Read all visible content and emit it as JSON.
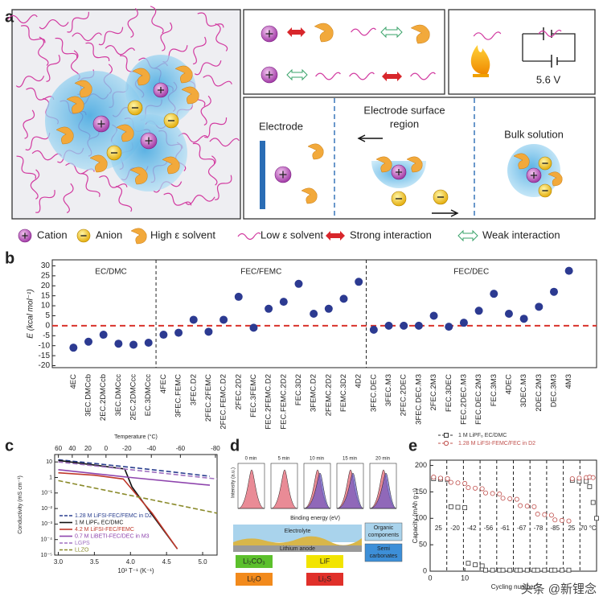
{
  "panel_labels": [
    "a",
    "b",
    "c",
    "d",
    "e"
  ],
  "panel_a": {
    "voltage": "5.6 V",
    "electrode": "Electrode",
    "surface_region": [
      "Electrode surface",
      "region"
    ],
    "bulk": "Bulk solution",
    "legend": [
      "Cation",
      "Anion",
      "High ε solvent",
      "Low ε solvent",
      "Strong interaction",
      "Weak interaction"
    ]
  },
  "panel_d": {
    "times": [
      "0 min",
      "5 min",
      "10 min",
      "15 min",
      "20 min"
    ],
    "x_label": "Binding energy (eV)",
    "y_label": "Intensity (a.u.)",
    "electrolyte": "Electrolyte",
    "organic": [
      "Organic",
      "components"
    ],
    "anode": "Lithium anode",
    "semi": [
      "Semi",
      "carbonates"
    ],
    "species": [
      "Li₂CO₃",
      "LiF",
      "Li₂O",
      "Li₂S"
    ]
  },
  "watermark": "头条 @新锂念",
  "chart_data": [
    {
      "type": "scatter",
      "y_label": "E (kcal mol⁻¹)",
      "color": "#2c3a91",
      "zero_line_color": "#d9322b",
      "ylim": [
        -21,
        33
      ],
      "yticks": [
        -20,
        -15,
        -10,
        -5,
        0,
        5,
        10,
        15,
        20,
        25,
        30
      ],
      "groups": [
        {
          "name": "EC/DMC",
          "categories": [
            "4EC",
            "3EC.DMCcb",
            "2EC.2DMCcb",
            "3EC.DMCcc",
            "2EC.2DMCcc",
            "EC.3DMCcc"
          ],
          "values": [
            -11,
            -8,
            -4.5,
            -9,
            -9.5,
            -8.5
          ]
        },
        {
          "name": "FEC/FEMC",
          "categories": [
            "4FEC",
            "3FEC.FEMC",
            "3FEC.D2",
            "2FEC.2FEMC",
            "2FEC.FEMC.D2",
            "2FEC.2D2",
            "FEC.3FEMC",
            "FEC.2FEMC.D2",
            "FEC.FEMC.2D2",
            "FEC.3D2",
            "3FEMC.D2",
            "2FEMC.2D2",
            "FEMC.3D2",
            "4D2"
          ],
          "values": [
            -4.5,
            -3.5,
            3,
            -3,
            3,
            14.5,
            -1,
            8.5,
            12,
            21,
            6,
            8.5,
            13.5,
            22
          ]
        },
        {
          "name": "FEC/DEC",
          "categories": [
            "3FEC.DEC",
            "3FEC.M3",
            "2FEC.2DEC",
            "3FEC.DEC.M3",
            "2FEC.2M3",
            "FEC.3DEC",
            "FEC.2DEC.M3",
            "FEC.DEC.2M3",
            "FEC.3M3",
            "4DEC",
            "3DEC.M3",
            "2DEC.2M3",
            "DEC.3M3",
            "4M3"
          ],
          "values": [
            -2,
            0,
            0,
            0,
            5,
            -0.5,
            1.5,
            7.5,
            16,
            6,
            3.5,
            9.5,
            17,
            27.5
          ]
        }
      ]
    },
    {
      "type": "line",
      "log_y": true,
      "top_label": "Temperature (°C)",
      "x_label": "10³ T⁻¹ (K⁻¹)",
      "y_label": "Conductivity (mS cm⁻¹)",
      "xlim": [
        2.95,
        5.2
      ],
      "xticks": [
        {
          "value": 3,
          "label": "3.0"
        },
        3.5,
        {
          "value": 4,
          "label": "4.0"
        },
        4.5,
        {
          "value": 5,
          "label": "5.0"
        }
      ],
      "x2ticks": [
        60,
        40,
        20,
        0,
        -20,
        -40,
        -60,
        -80
      ],
      "ylim": [
        1e-05,
        30
      ],
      "yticks": [
        {
          "value": 10,
          "label": "10"
        },
        1,
        {
          "value": 0.1,
          "label": "10⁻¹"
        },
        {
          "value": 0.01,
          "label": "10⁻²"
        },
        {
          "value": 0.001,
          "label": "10⁻³"
        },
        {
          "value": 0.0001,
          "label": "10⁻⁴"
        },
        {
          "value": 1e-05,
          "label": "10⁻⁵"
        }
      ],
      "series": [
        {
          "name": "1.28 M LiFSI-FEC/FEMC in D2",
          "color": "#2a3f8f",
          "dash": "dashed",
          "x": [
            3.0,
            3.5,
            4.0,
            4.5,
            5.1
          ],
          "values": [
            14,
            8,
            4.5,
            2.5,
            1.2
          ]
        },
        {
          "name": "1 M LiPF₆ EC/DMC",
          "color": "#111111",
          "dash": "solid",
          "x": [
            3.0,
            3.5,
            3.92,
            4.02,
            4.3,
            4.65
          ],
          "values": [
            12.6,
            6.3,
            3.5,
            0.25,
            0.004,
            2.5e-05
          ]
        },
        {
          "name": "4.2 M LiFSI-FEC/FEMC",
          "color": "#c0392b",
          "dash": "solid",
          "x": [
            3.0,
            3.5,
            3.9,
            4.3,
            4.65
          ],
          "values": [
            2,
            1.4,
            0.8,
            0.005,
            2.5e-05
          ]
        },
        {
          "name": "0.7 M LiBETI-FEC/DEC in M3",
          "color": "#8e44ad",
          "dash": "solid",
          "x": [
            3.0,
            4.0,
            5.1
          ],
          "values": [
            3.2,
            1,
            0.32
          ]
        },
        {
          "name": "LGPS",
          "color": "#a070c0",
          "dash": "dashed",
          "x": [
            3.0,
            5.2
          ],
          "values": [
            10,
            0.8
          ]
        },
        {
          "name": "LLZO",
          "color": "#8a8a2a",
          "dash": "dashed",
          "x": [
            3.0,
            5.2
          ],
          "values": [
            0.63,
            0.005
          ]
        }
      ]
    },
    {
      "type": "scatter",
      "x_label": "Cycling number",
      "y_label": "Capacity (mAh g⁻¹)",
      "xlim": [
        0,
        48
      ],
      "xticks": [
        0,
        10
      ],
      "ylim": [
        0,
        210
      ],
      "yticks": [
        0,
        50,
        100,
        150,
        200
      ],
      "temperature_labels": [
        "25",
        "-20",
        "-42",
        "-56",
        "-61",
        "-67",
        "-78",
        "-85",
        "25",
        "70 °C"
      ],
      "series": [
        {
          "name": "1 M LiPF₆ EC/DMC",
          "color": "#333333",
          "marker": "square",
          "x": [
            1,
            3,
            5,
            6,
            8,
            10,
            11,
            13,
            15,
            16,
            18,
            20,
            21,
            23,
            25,
            26,
            28,
            30,
            31,
            33,
            35,
            36,
            38,
            40,
            41,
            43,
            45,
            46,
            47,
            48
          ],
          "values": [
            175,
            174,
            173,
            122,
            121,
            120,
            15,
            12,
            10,
            2,
            2,
            2,
            2,
            2,
            2,
            2,
            2,
            2,
            2,
            2,
            2,
            2,
            2,
            2,
            172,
            170,
            170,
            160,
            130,
            100
          ]
        },
        {
          "name": "1.28 M LiFSI-FEMC/FEC in D2",
          "color": "#c0504d",
          "marker": "circle",
          "x": [
            1,
            3,
            5,
            6,
            8,
            10,
            11,
            13,
            15,
            16,
            18,
            20,
            21,
            23,
            25,
            26,
            28,
            30,
            31,
            33,
            35,
            36,
            38,
            40,
            41,
            43,
            45,
            46,
            47
          ],
          "values": [
            178,
            176,
            175,
            168,
            167,
            166,
            158,
            157,
            156,
            148,
            147,
            146,
            138,
            137,
            136,
            124,
            123,
            122,
            108,
            107,
            106,
            97,
            96,
            95,
            175,
            176,
            177,
            178,
            177
          ]
        }
      ]
    }
  ]
}
